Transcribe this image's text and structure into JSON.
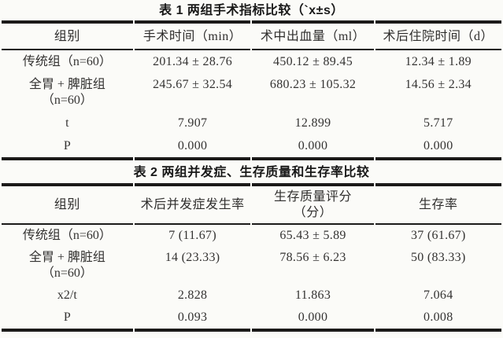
{
  "page": {
    "background_color": "#fbfbf8",
    "text_color": "#333231",
    "rule_color": "#1b1a19"
  },
  "table1": {
    "title": "表 1 两组手术指标比较（`x±s）",
    "headers": [
      "组别",
      "手术时间（min）",
      "术中出血量（ml）",
      "术后住院时间（d）"
    ],
    "rows": [
      {
        "label": "传统组（n=60）",
        "label2": "",
        "values": [
          "201.34 ± 28.76",
          "450.12 ± 89.45",
          "12.34 ± 1.89"
        ]
      },
      {
        "label": "全胃 + 脾脏组",
        "label2": "（n=60）",
        "values": [
          "245.67 ± 32.54",
          "680.23 ± 105.32",
          "14.56 ± 2.34"
        ]
      },
      {
        "label": "t",
        "label2": "",
        "values": [
          "7.907",
          "12.899",
          "5.717"
        ]
      },
      {
        "label": "P",
        "label2": "",
        "values": [
          "0.000",
          "0.000",
          "0.000"
        ]
      }
    ]
  },
  "table2": {
    "title": "表 2 两组并发症、生存质量和生存率比较",
    "headers": [
      "组别",
      "术后并发症发生率",
      "生存质量评分",
      "生存率"
    ],
    "header3_line2": "（分）",
    "rows": [
      {
        "label": "传统组（n=60）",
        "label2": "",
        "values": [
          "7 (11.67)",
          "65.43 ± 5.89",
          "37 (61.67)"
        ]
      },
      {
        "label": "全胃 + 脾脏组",
        "label2": "（n=60）",
        "values": [
          "14 (23.33)",
          "78.56 ± 6.23",
          "50 (83.33)"
        ]
      },
      {
        "label": "x2/t",
        "label2": "",
        "values": [
          "2.828",
          "11.863",
          "7.064"
        ]
      },
      {
        "label": "P",
        "label2": "",
        "values": [
          "0.093",
          "0.000",
          "0.008"
        ]
      }
    ]
  }
}
